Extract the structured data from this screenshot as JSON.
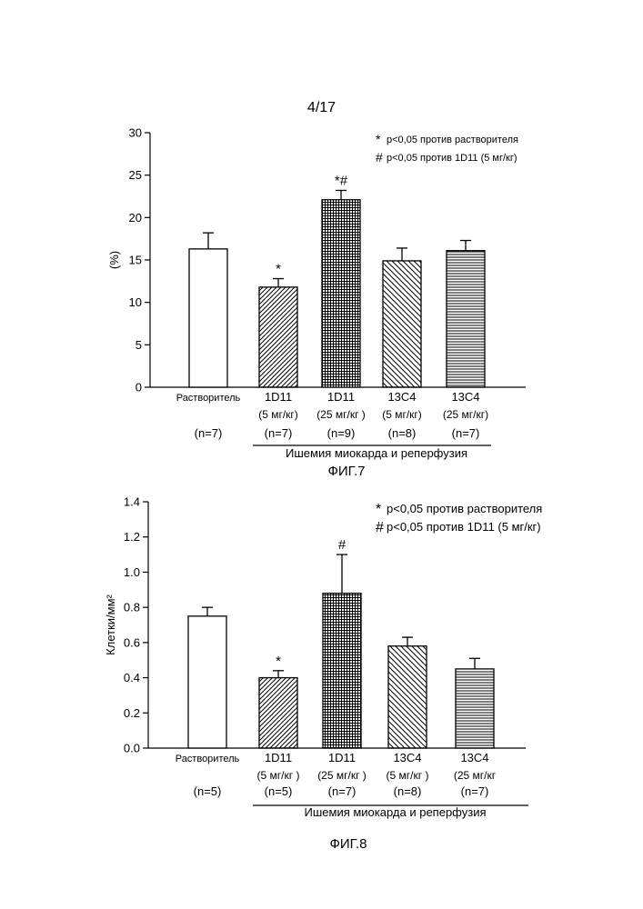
{
  "page_number": "4/17",
  "chart_data": [
    {
      "type": "bar",
      "figure_label": "ФИГ.7",
      "ylabel": "(%)",
      "ylim": [
        0,
        30
      ],
      "yticks": [
        "0",
        "5",
        "10",
        "15",
        "20",
        "25",
        "30"
      ],
      "categories": [
        {
          "line1": "Растворитель",
          "line2": "",
          "n": "(n=7)",
          "pattern": "empty"
        },
        {
          "line1": "1D11",
          "line2": "(5  мг/кг)",
          "n": "(n=7)",
          "pattern": "diag-right"
        },
        {
          "line1": "1D11",
          "line2": "(25 мг/кг )",
          "n": "(n=9)",
          "pattern": "crosshatch"
        },
        {
          "line1": "13C4",
          "line2": "(5  мг/кг)",
          "n": "(n=8)",
          "pattern": "diag-left"
        },
        {
          "line1": "13C4",
          "line2": "(25 мг/кг)",
          "n": "(n=7)",
          "pattern": "horizontal"
        }
      ],
      "values": [
        16.3,
        11.8,
        22.1,
        14.9,
        16.1
      ],
      "errors": [
        1.9,
        1.0,
        1.1,
        1.5,
        1.2
      ],
      "annotations": [
        "",
        "*",
        "*#",
        "",
        ""
      ],
      "group_label": "Ишемия миокарда и реперфузия",
      "legend": [
        {
          "symbol": "*",
          "text": "р<0,05 против растворителя"
        },
        {
          "symbol": "#",
          "text": "р<0,05 против 1D11 (5 мг/кг)"
        }
      ],
      "legend_position": "top-right"
    },
    {
      "type": "bar",
      "figure_label": "ФИГ.8",
      "ylabel": "Клетки/мм²",
      "ylim": [
        0,
        1.4
      ],
      "yticks": [
        "0.0",
        "0.2",
        "0.4",
        "0.6",
        "0.8",
        "1.0",
        "1.2",
        "1.4"
      ],
      "categories": [
        {
          "line1": "Растворитель",
          "line2": "",
          "n": "(n=5)",
          "pattern": "empty"
        },
        {
          "line1": "1D11",
          "line2": "(5  мг/кг )",
          "n": "(n=5)",
          "pattern": "diag-right"
        },
        {
          "line1": "1D11",
          "line2": "(25  мг/кг )",
          "n": "(n=7)",
          "pattern": "crosshatch"
        },
        {
          "line1": "13C4",
          "line2": "(5  мг/кг )",
          "n": "(n=8)",
          "pattern": "diag-left"
        },
        {
          "line1": "13C4",
          "line2": "(25  мг/кг",
          "n": "(n=7)",
          "pattern": "horizontal"
        }
      ],
      "values": [
        0.75,
        0.4,
        0.88,
        0.58,
        0.45
      ],
      "errors": [
        0.05,
        0.04,
        0.22,
        0.05,
        0.06
      ],
      "annotations": [
        "",
        "*",
        "#",
        "",
        ""
      ],
      "group_label": "Ишемия миокарда и реперфузия",
      "legend": [
        {
          "symbol": "*",
          "text": "р<0,05 против растворителя"
        },
        {
          "symbol": "#",
          "text": "р<0,05 против 1D11 (5 мг/кг)"
        }
      ],
      "legend_position": "top-right"
    }
  ]
}
